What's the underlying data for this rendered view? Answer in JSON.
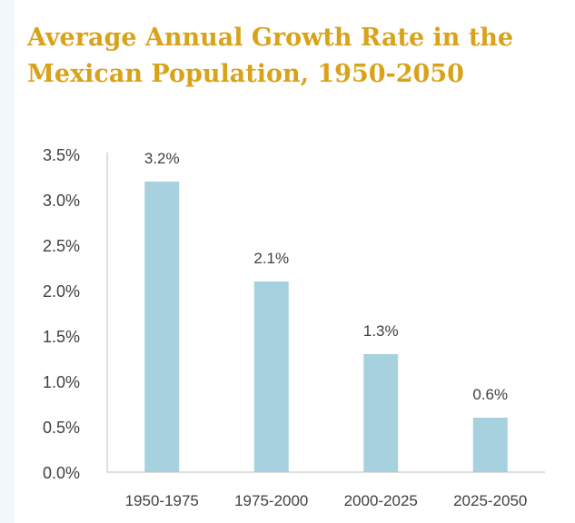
{
  "chart_data": {
    "type": "bar",
    "title": "Average Annual Growth Rate in the Mexican Population,  1950-2050",
    "categories": [
      "1950-1975",
      "1975-2000",
      "2000-2025",
      "2025-2050"
    ],
    "values": [
      3.2,
      2.1,
      1.3,
      0.6
    ],
    "data_labels": [
      "3.2%",
      "2.1%",
      "1.3%",
      "0.6%"
    ],
    "y_ticks": [
      "0.0%",
      "0.5%",
      "1.0%",
      "1.5%",
      "2.0%",
      "2.5%",
      "3.0%",
      "3.5%"
    ],
    "ylim": [
      0,
      3.5
    ],
    "xlabel": "",
    "ylabel": "",
    "grid": false,
    "legend": "none",
    "bar_color": "#a8d1df",
    "title_color": "#d9a21b"
  }
}
